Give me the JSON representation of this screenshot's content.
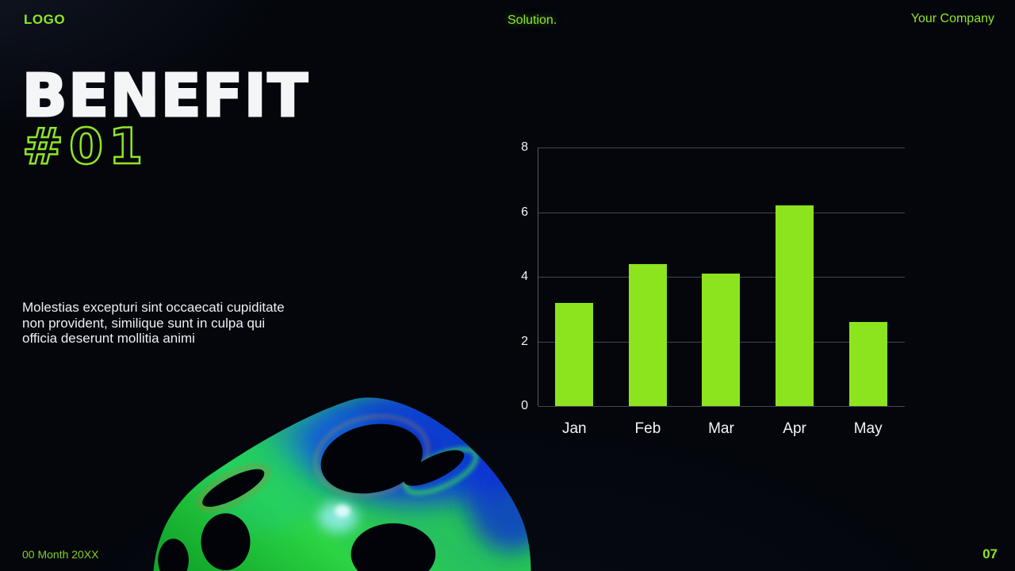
{
  "header": {
    "logo": "LOGO",
    "center_label": "Solution.",
    "company": "Your Company"
  },
  "title": {
    "line1": "BENEFIT",
    "line2": "#01"
  },
  "body_text": "Molestias excepturi sint occaecati cupiditate non provident, similique sunt in culpa qui officia deserunt mollitia animi",
  "footer": {
    "date": "00 Month 20XX",
    "page_number": "07"
  },
  "colors": {
    "accent_green": "#8FE624",
    "bar_green": "#8CE41F",
    "background": "#04060C",
    "grid": "rgba(150,160,180,0.42)",
    "text_white": "#F2F3F5"
  },
  "icons": {
    "decoration": "3d-perforated-sphere"
  },
  "chart_data": {
    "type": "bar",
    "categories": [
      "Jan",
      "Feb",
      "Mar",
      "Apr",
      "May"
    ],
    "values": [
      3.2,
      4.4,
      4.1,
      6.2,
      2.6
    ],
    "title": "",
    "xlabel": "",
    "ylabel": "",
    "ylim": [
      0,
      8
    ],
    "yticks": [
      0,
      2,
      4,
      6,
      8
    ],
    "grid": true,
    "legend": false,
    "bar_color": "#8CE41F"
  }
}
